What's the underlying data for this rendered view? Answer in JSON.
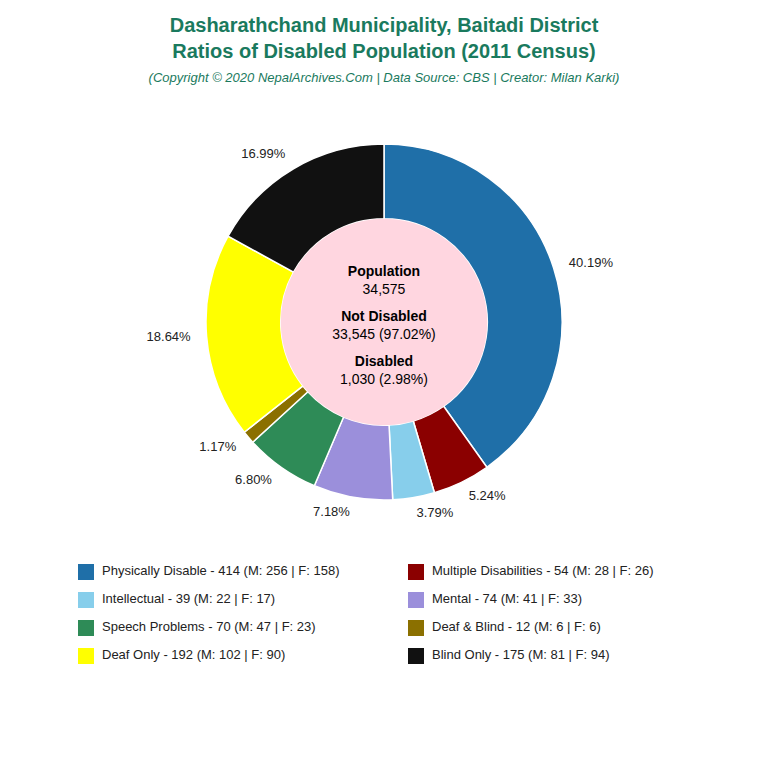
{
  "chart_data": {
    "type": "pie",
    "title": "Dasharathchand Municipality, Baitadi District\nRatios of Disabled Population (2011 Census)",
    "subtitle": "(Copyright © 2020 NepalArchives.Com | Data Source: CBS | Creator: Milan Karki)",
    "categories": [
      "Physically Disable - 414 (M: 256 | F: 158)",
      "Multiple Disabilities - 54 (M: 28 | F: 26)",
      "Intellectual - 39 (M: 22 | F: 17)",
      "Mental - 74 (M: 41 | F: 33)",
      "Speech Problems - 70 (M: 47 | F: 23)",
      "Deaf & Blind - 12 (M: 6 | F: 6)",
      "Deaf Only - 192 (M: 102 | F: 90)",
      "Blind Only - 175 (M: 81 | F: 94)"
    ],
    "values": [
      40.19,
      5.24,
      3.79,
      7.18,
      6.8,
      1.17,
      18.64,
      16.99
    ],
    "value_labels": [
      "40.19%",
      "5.24%",
      "3.79%",
      "7.18%",
      "6.80%",
      "1.17%",
      "18.64%",
      "16.99%"
    ],
    "colors": [
      "#1f6fa8",
      "#8b0000",
      "#87ceeb",
      "#9b8fdb",
      "#2e8b57",
      "#8b7000",
      "#ffff00",
      "#111111"
    ],
    "data_labels": true,
    "legend": "bottom",
    "annotations": [
      "Population",
      "34,575",
      "Not Disabled",
      "33,545 (97.02%)",
      "Disabled",
      "1,030 (2.98%)"
    ]
  }
}
